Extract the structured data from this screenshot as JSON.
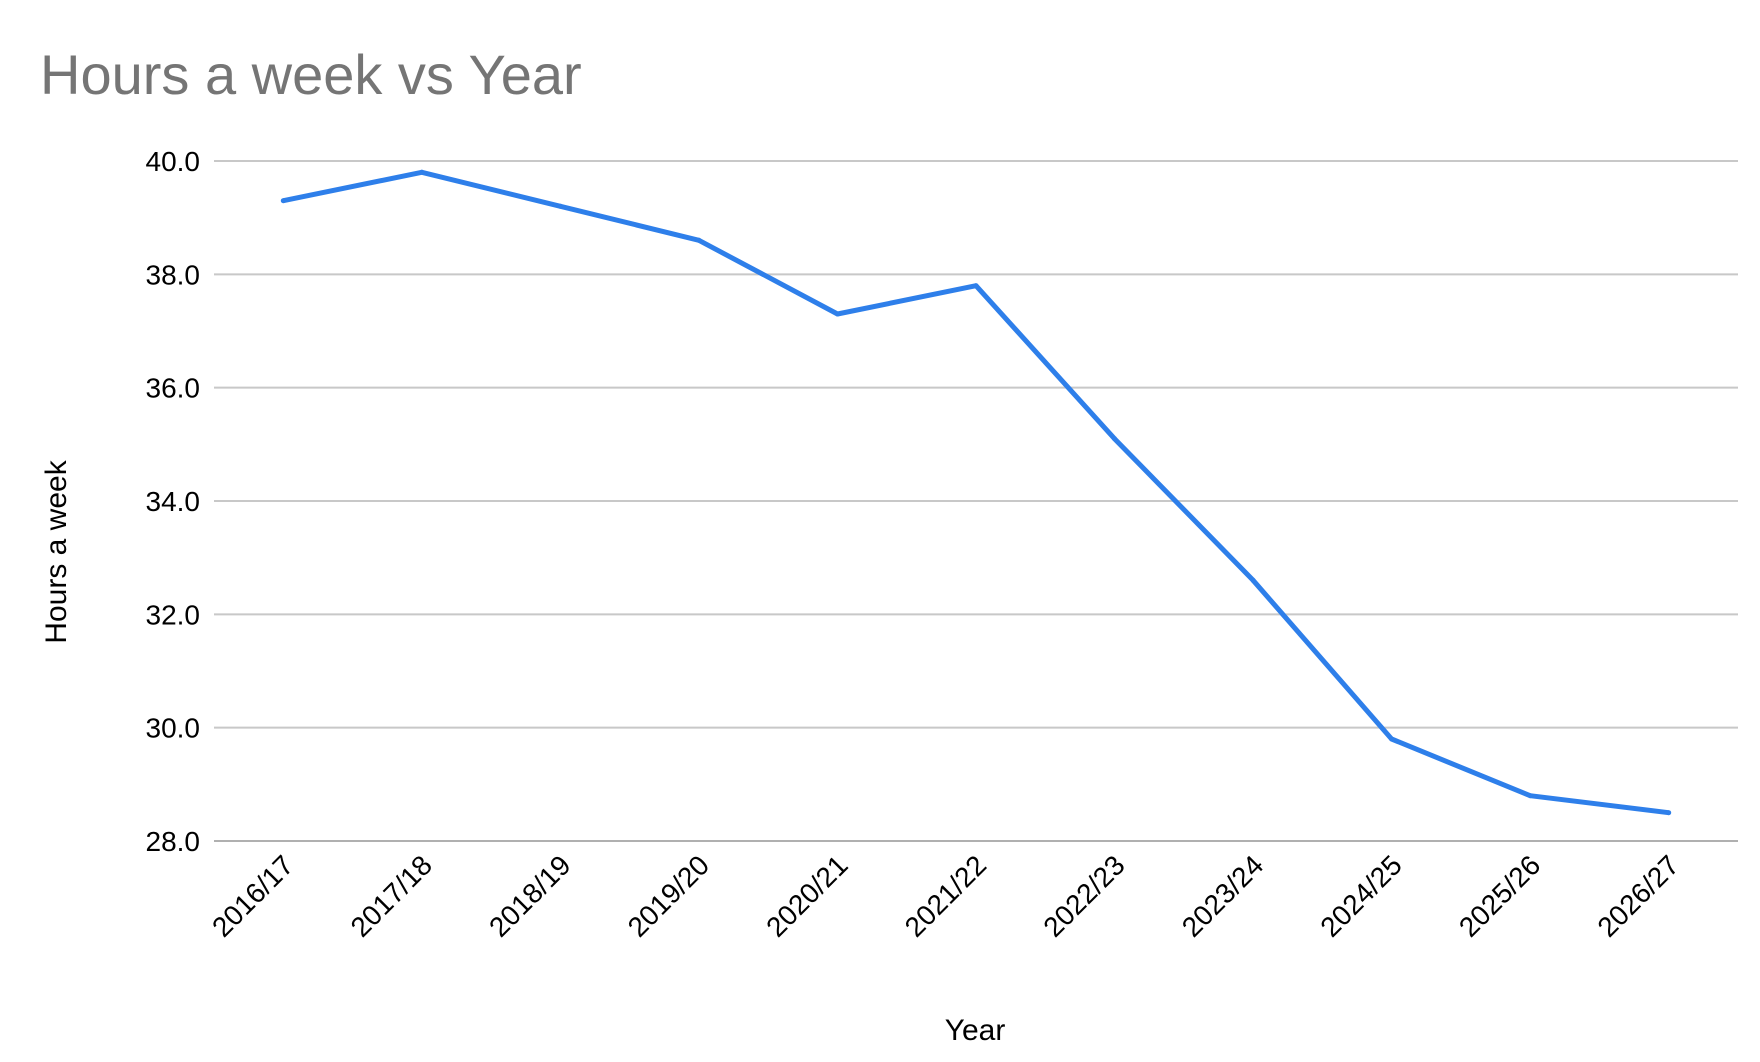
{
  "chart_data": {
    "type": "line",
    "title": "Hours a week vs Year",
    "xlabel": "Year",
    "ylabel": "Hours a week",
    "categories": [
      "2016/17",
      "2017/18",
      "2018/19",
      "2019/20",
      "2020/21",
      "2021/22",
      "2022/23",
      "2023/24",
      "2024/25",
      "2025/26",
      "2026/27"
    ],
    "series": [
      {
        "values": [
          39.3,
          39.8,
          39.2,
          38.6,
          37.3,
          37.8,
          35.1,
          32.6,
          29.8,
          28.8,
          28.5
        ],
        "color": "#2e7fea"
      }
    ],
    "ylim": [
      28,
      40
    ],
    "yticks": [
      "28.0",
      "30.0",
      "32.0",
      "34.0",
      "36.0",
      "38.0",
      "40.0"
    ],
    "grid": true,
    "legend": "none"
  }
}
